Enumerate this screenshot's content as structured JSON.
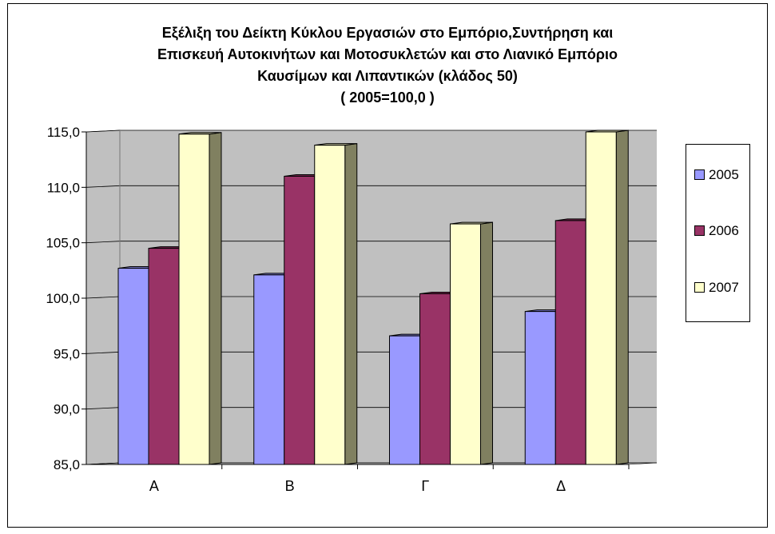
{
  "chart_data": {
    "type": "bar",
    "title_lines": [
      "Εξέλιξη του Δείκτη Κύκλου Εργασιών στο Εμπόριο,Συντήρηση και",
      "Επισκευή Αυτοκινήτων και Μοτοσυκλετών και στο Λιανικό Εμπόριο",
      "Καυσίμων και Λιπαντικών (κλάδος 50)",
      "( 2005=100,0 )"
    ],
    "categories": [
      "Α",
      "Β",
      "Γ",
      "Δ"
    ],
    "series": [
      {
        "name": "2005",
        "color": "#9999ff",
        "values": [
          102.7,
          102.1,
          96.6,
          98.8
        ]
      },
      {
        "name": "2006",
        "color": "#993366",
        "values": [
          104.5,
          111.0,
          100.4,
          107.0
        ]
      },
      {
        "name": "2007",
        "color": "#ffffcc",
        "values": [
          114.8,
          113.8,
          106.7,
          115.0
        ]
      }
    ],
    "ylim": [
      85,
      115
    ],
    "yticks": [
      85,
      90,
      95,
      100,
      105,
      110,
      115
    ],
    "ytick_labels": [
      "85,0",
      "90,0",
      "95,0",
      "100,0",
      "105,0",
      "110,0",
      "115,0"
    ],
    "grid": true,
    "legend_position": "right",
    "colors": {
      "plot_background": "#c0c0c0",
      "side_wall": "#c0c0c0",
      "floor": "#c0c0c0",
      "bar_side_dark": "#808060"
    }
  }
}
